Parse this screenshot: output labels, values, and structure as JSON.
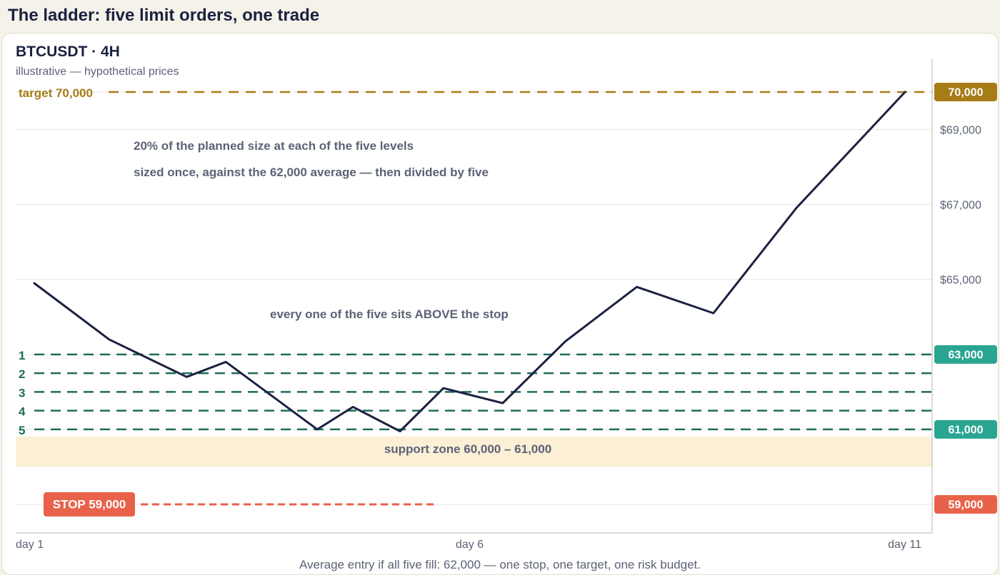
{
  "page": {
    "title": "The ladder: five limit orders, one trade"
  },
  "chart_data": {
    "type": "line",
    "symbol_title": "BTCUSDT · 4H",
    "subtitle": "illustrative — hypothetical prices",
    "x_ticks": [
      "day 1",
      "day 6",
      "day 11"
    ],
    "y_ticks": [
      {
        "value": 69000,
        "label": "$69,000"
      },
      {
        "value": 67000,
        "label": "$67,000"
      },
      {
        "value": 65000,
        "label": "$65,000"
      }
    ],
    "ylim": [
      58300,
      70900
    ],
    "xlim": [
      1,
      11
    ],
    "grid": true,
    "series": [
      {
        "values": [
          [
            1.0,
            64900
          ],
          [
            1.86,
            63400
          ],
          [
            2.75,
            62400
          ],
          [
            3.2,
            62800
          ],
          [
            4.25,
            61000
          ],
          [
            4.66,
            61600
          ],
          [
            5.2,
            60950
          ],
          [
            5.7,
            62100
          ],
          [
            6.38,
            61700
          ],
          [
            7.1,
            63350
          ],
          [
            7.92,
            64800
          ],
          [
            8.8,
            64100
          ],
          [
            9.75,
            66900
          ],
          [
            11.0,
            70000
          ]
        ]
      }
    ],
    "levels": {
      "target": {
        "value": 70000,
        "left_label": "target  70,000",
        "badge": "70,000",
        "color": "#a67c17"
      },
      "entries": [
        {
          "label": "1",
          "value": 63000
        },
        {
          "label": "2",
          "value": 62500
        },
        {
          "label": "3",
          "value": 62000
        },
        {
          "label": "4",
          "value": 61500
        },
        {
          "label": "5",
          "value": 61000
        }
      ],
      "entry_color": "#1e6b5c",
      "entry_badge_color": "#2aa592",
      "entry_badges": [
        {
          "value": 63000,
          "text": "63,000"
        },
        {
          "value": 61000,
          "text": "61,000"
        }
      ],
      "stop": {
        "value": 59000,
        "label": "STOP 59,000",
        "badge": "59,000",
        "color": "#e8624a"
      }
    },
    "support_zone": {
      "from": 60000,
      "to": 61000,
      "label": "support zone  60,000 – 61,000",
      "color": "#fbefd6"
    },
    "annotations": {
      "size_line1": "20% of the planned size at each of the five levels",
      "size_line2": "sized once, against the 62,000 average — then divided by five",
      "above_stop": "every one of the five sits ABOVE the stop"
    },
    "footer": "Average entry if all five fill: 62,000 — one stop, one target, one risk budget.",
    "colors": {
      "line": "#1b2140",
      "grid": "#e4e4e4",
      "axis_text": "#5c6275",
      "annotation": "#5c6275"
    }
  }
}
